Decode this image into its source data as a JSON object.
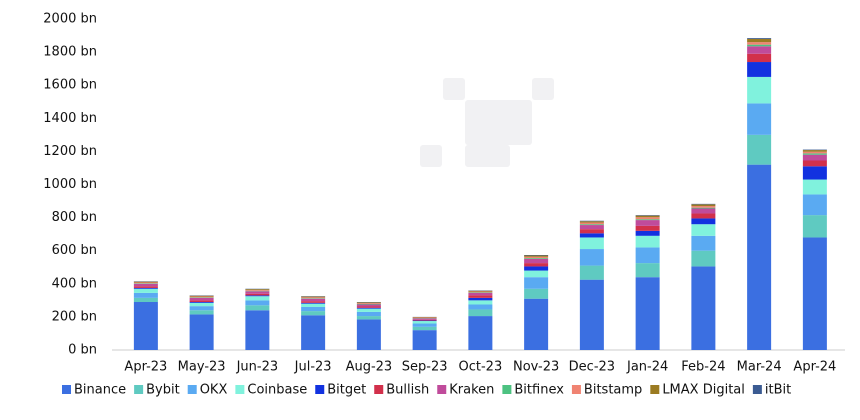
{
  "chart_data": {
    "type": "stacked-bar",
    "categories": [
      "Apr-23",
      "May-23",
      "Jun-23",
      "Jul-23",
      "Aug-23",
      "Sep-23",
      "Oct-23",
      "Nov-23",
      "Dec-23",
      "Jan-24",
      "Feb-24",
      "Mar-24",
      "Apr-24"
    ],
    "series": [
      {
        "name": "Binance",
        "color": "#3b6fe1",
        "values": [
          290,
          215,
          240,
          210,
          185,
          120,
          205,
          310,
          425,
          440,
          505,
          1120,
          680
        ]
      },
      {
        "name": "Bybit",
        "color": "#5fcac1",
        "values": [
          25,
          25,
          30,
          25,
          20,
          20,
          40,
          60,
          85,
          85,
          95,
          180,
          135
        ]
      },
      {
        "name": "OKX",
        "color": "#5aaaf2",
        "values": [
          30,
          25,
          30,
          25,
          25,
          20,
          30,
          70,
          100,
          95,
          90,
          190,
          125
        ]
      },
      {
        "name": "Coinbase",
        "color": "#80f2dd",
        "values": [
          25,
          20,
          25,
          20,
          20,
          15,
          25,
          40,
          70,
          70,
          70,
          160,
          90
        ]
      },
      {
        "name": "Bitget",
        "color": "#1232e0",
        "values": [
          5,
          5,
          5,
          5,
          5,
          3,
          15,
          25,
          25,
          30,
          35,
          90,
          80
        ]
      },
      {
        "name": "Bullish",
        "color": "#d2304b",
        "values": [
          10,
          10,
          10,
          10,
          8,
          5,
          15,
          20,
          25,
          30,
          30,
          50,
          35
        ]
      },
      {
        "name": "Kraken",
        "color": "#c04b9b",
        "values": [
          15,
          15,
          15,
          15,
          12,
          8,
          15,
          25,
          25,
          35,
          30,
          45,
          35
        ]
      },
      {
        "name": "Bitfinex",
        "color": "#4dc281",
        "values": [
          3,
          3,
          3,
          3,
          3,
          2,
          3,
          5,
          5,
          5,
          5,
          10,
          8
        ]
      },
      {
        "name": "Bitstamp",
        "color": "#f08372",
        "values": [
          5,
          5,
          5,
          5,
          5,
          3,
          5,
          8,
          10,
          12,
          10,
          15,
          10
        ]
      },
      {
        "name": "LMAX Digital",
        "color": "#9b7b22",
        "values": [
          5,
          5,
          5,
          5,
          5,
          3,
          5,
          8,
          8,
          10,
          10,
          20,
          10
        ]
      },
      {
        "name": "itBit",
        "color": "#3b5b92",
        "values": [
          2,
          2,
          2,
          2,
          2,
          1,
          2,
          3,
          3,
          3,
          3,
          5,
          3
        ]
      }
    ],
    "ylim": [
      0,
      2000
    ],
    "yticks": [
      {
        "value": 0,
        "label": "0 bn"
      },
      {
        "value": 200,
        "label": "200 bn"
      },
      {
        "value": 400,
        "label": "400 bn"
      },
      {
        "value": 600,
        "label": "600 bn"
      },
      {
        "value": 800,
        "label": "800 bn"
      },
      {
        "value": 1000,
        "label": "1000 bn"
      },
      {
        "value": 1200,
        "label": "1200 bn"
      },
      {
        "value": 1400,
        "label": "1400 bn"
      },
      {
        "value": 1600,
        "label": "1600 bn"
      },
      {
        "value": 1800,
        "label": "1800 bn"
      },
      {
        "value": 2000,
        "label": "2000 bn"
      }
    ],
    "grid": false,
    "legend": "bottom"
  }
}
